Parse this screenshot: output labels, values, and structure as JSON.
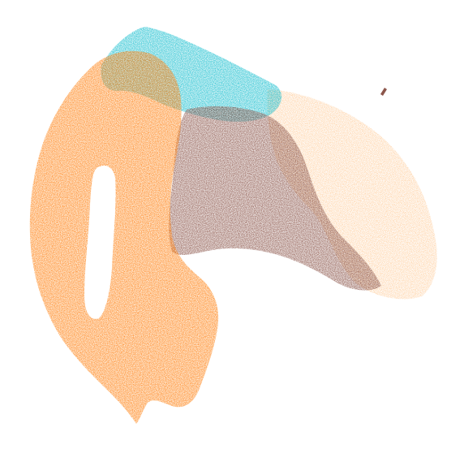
{
  "chart_data": {
    "type": "scatter",
    "title": "",
    "xlabel": "",
    "ylabel": "",
    "axes_visible": false,
    "grid": false,
    "legend": "none",
    "series": [
      {
        "color": "#FF7F0E",
        "values": []
      },
      {
        "color": "#17BECF",
        "values": []
      },
      {
        "color": "#8C564B",
        "values": []
      },
      {
        "color": "#FFBB78",
        "values": []
      }
    ]
  }
}
